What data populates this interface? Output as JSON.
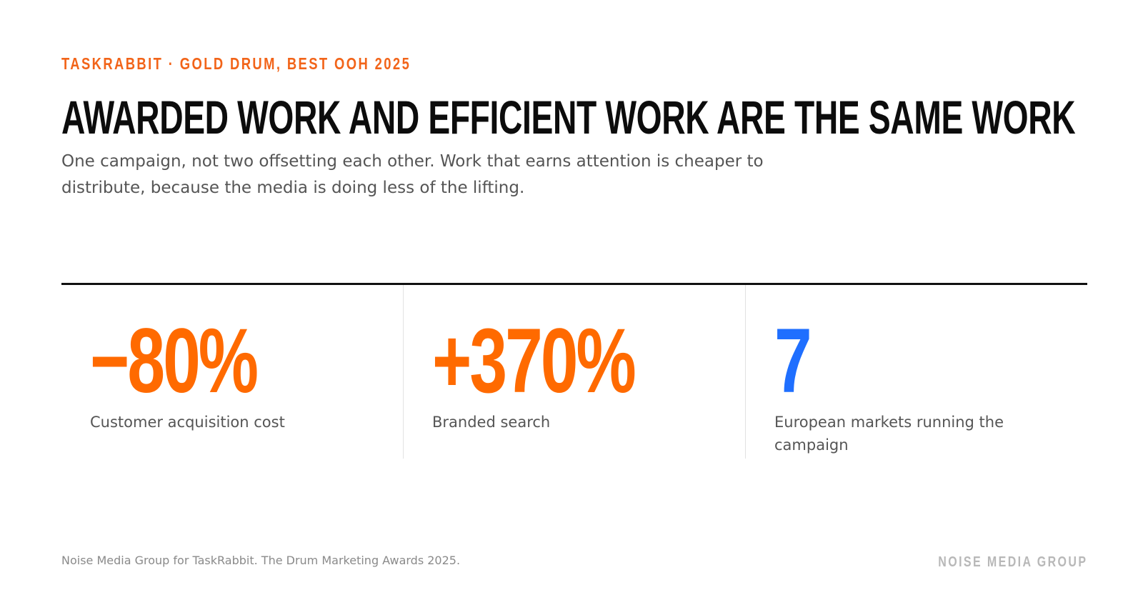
{
  "slide": {
    "eyebrow": "TASKRABBIT · GOLD DRUM, BEST OOH 2025",
    "headline": "AWARDED WORK AND EFFICIENT WORK ARE THE SAME WORK",
    "subtitle": "One campaign, not two offsetting each other. Work that earns attention is cheaper to distribute, because the media is doing less of the lifting."
  },
  "stats": [
    {
      "value": "−80%",
      "label": "Customer acquisition cost",
      "color": "#ff6a00"
    },
    {
      "value": "+370%",
      "label": "Branded search",
      "color": "#ff6a00"
    },
    {
      "value": "7",
      "label": "European markets running the campaign",
      "color": "#1f6fff"
    }
  ],
  "footer": {
    "note": "Noise Media Group for TaskRabbit. The Drum Marketing Awards 2025.",
    "brand": "NOISE MEDIA GROUP"
  },
  "colors": {
    "accent": "#f26419",
    "stat_orange": "#ff6a00",
    "stat_blue": "#1f6fff",
    "text": "#0c0c0c",
    "muted": "#555555"
  }
}
